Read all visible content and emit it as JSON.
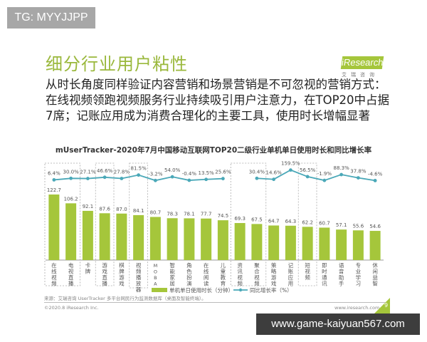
{
  "watermark_top": "TG: MYYJJPP",
  "watermark_bottom": "www.game-kaiyuan567.com",
  "slide": {
    "title": "细分行业用户粘性",
    "subtitle": "从时长角度同样验证内容营销和场景营销是不可忽视的营销方式：在线视频领跑视频服务行业持续吸引用户注意力，在TOP20中占据7席；记账应用成为消费合理化的主要工具，使用时长增幅显著",
    "logo": {
      "text": "iResearch",
      "sub": "艾瑞咨询"
    },
    "source": "来源：艾瑞咨询 UserTracker 多平台网民行为监测数据库（桌面及智能终端）。",
    "copyright": "©2020.8 iResearch Inc.",
    "website": "www.iresearch.com.cn",
    "page_number": "9"
  },
  "chart_data": {
    "type": "bar",
    "title": "mUserTracker-2020年7月中国移动互联网TOP20二级行业单机单日使用时长和同比增长率",
    "categories": [
      "在线视频",
      "电视直播",
      "卡牌",
      "游戏直播",
      "棋牌游戏",
      "视频播放器",
      "MOBA",
      "智能家居",
      "角色扮演",
      "在线阅读",
      "儿童教育",
      "资讯视频",
      "聚合视频",
      "策略游戏",
      "记账应用",
      "短视频",
      "即时通讯",
      "语音助手",
      "专业学习",
      "休闲益智"
    ],
    "series": [
      {
        "name": "单机单日使用时长（分钟）",
        "type": "bar",
        "color": "#a5c63b",
        "values": [
          122.7,
          106.2,
          92.1,
          87.6,
          87.0,
          84.1,
          80.7,
          78.3,
          78.1,
          77.7,
          74.5,
          69.3,
          67.5,
          64.7,
          64.3,
          62.2,
          60.7,
          57.1,
          55.6,
          54.6
        ]
      },
      {
        "name": "同比增长率（%）",
        "type": "line",
        "color": "#4aa8b8",
        "values": [
          6.4,
          30.0,
          27.1,
          46.6,
          27.8,
          81.5,
          -3.2,
          54.0,
          -0.4,
          13.5,
          25.6,
          null,
          30.4,
          14.6,
          159.5,
          56.5,
          -1.9,
          88.3,
          37.8,
          -4.6
        ]
      }
    ],
    "highlighted_categories": [
      "在线视频",
      "电视直播",
      "游戏直播",
      "视频播放器",
      "资讯视频",
      "聚合视频",
      "短视频"
    ],
    "legend_position": "bottom",
    "grid": false
  }
}
